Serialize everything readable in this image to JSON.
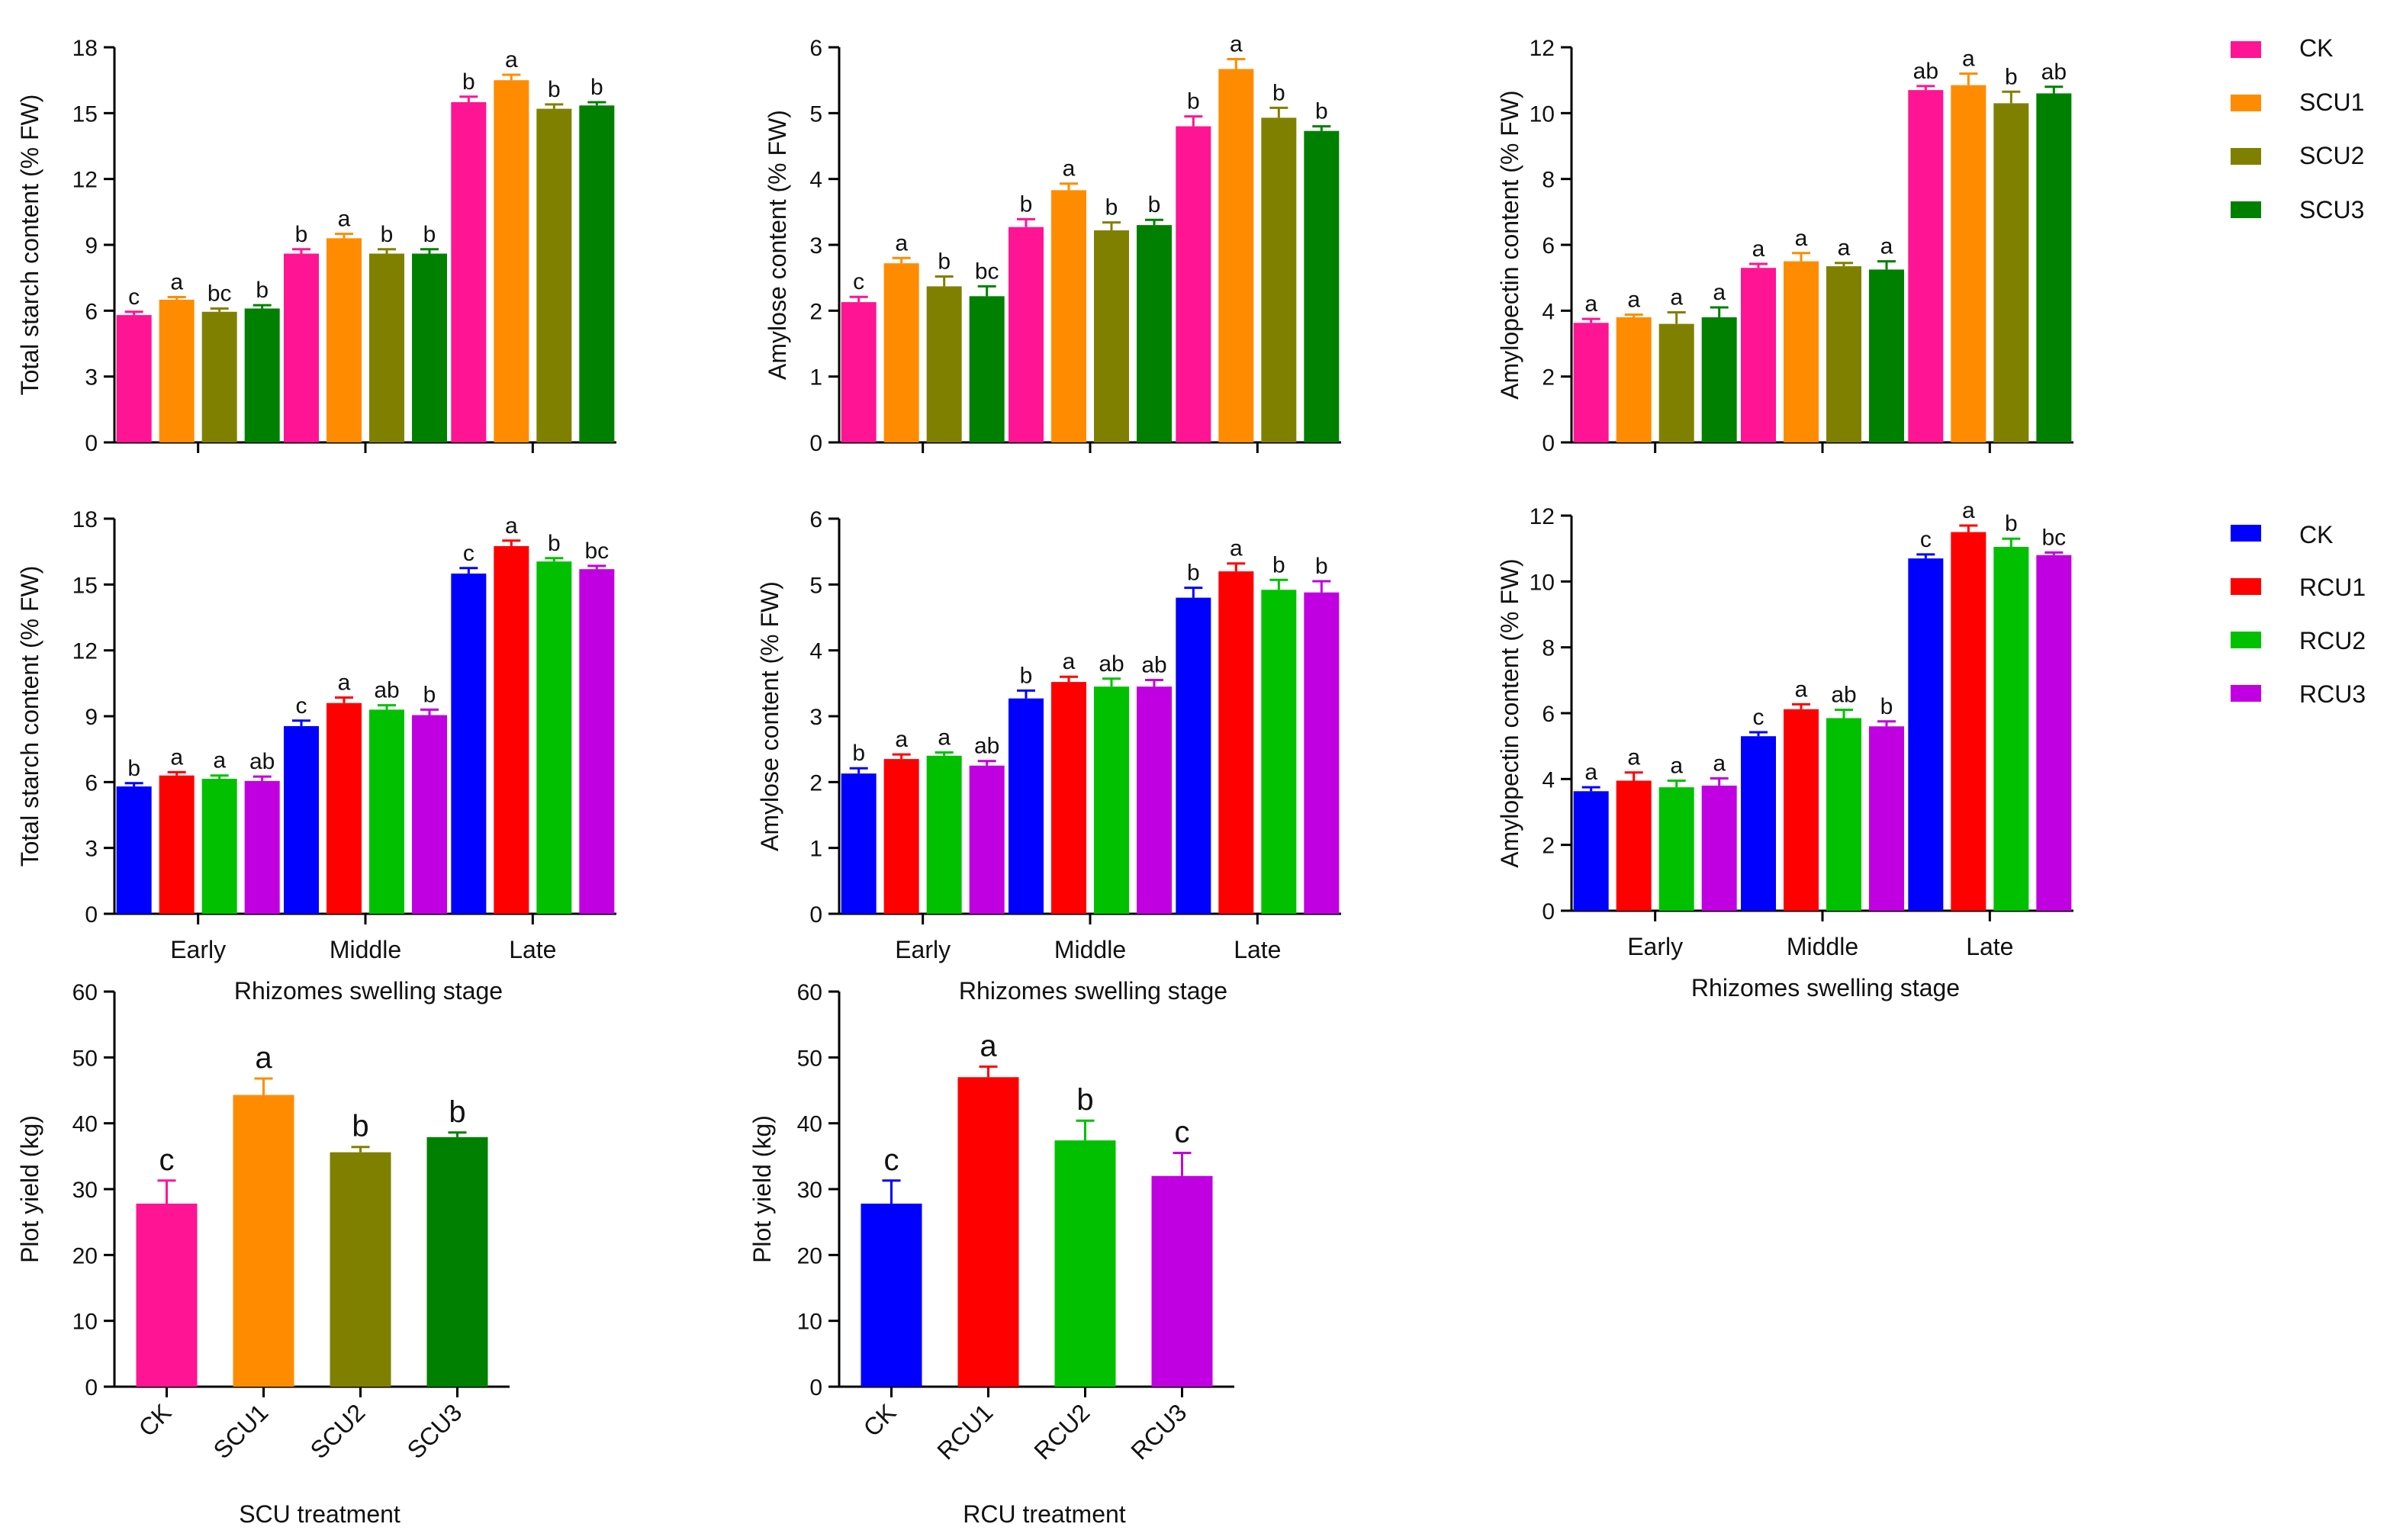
{
  "legends": {
    "scu": [
      {
        "label": "CK",
        "color": "#ff1493"
      },
      {
        "label": "SCU1",
        "color": "#ff8c00"
      },
      {
        "label": "SCU2",
        "color": "#808000"
      },
      {
        "label": "SCU3",
        "color": "#008000"
      }
    ],
    "rcu": [
      {
        "label": "CK",
        "color": "#0000ff"
      },
      {
        "label": "RCU1",
        "color": "#ff0000"
      },
      {
        "label": "RCU2",
        "color": "#00c000"
      },
      {
        "label": "RCU3",
        "color": "#c000e0"
      }
    ]
  },
  "chart_data": [
    {
      "type": "bar",
      "ylabel": "Total starch content (% FW)",
      "xlabel": "",
      "ylim": [
        0,
        18
      ],
      "yticks": [
        0,
        3,
        6,
        9,
        12,
        15,
        18
      ],
      "categories": [
        "Early",
        "Middle",
        "Late"
      ],
      "show_category_labels": false,
      "series": [
        {
          "name": "CK",
          "color": "#ff1493",
          "values": [
            5.8,
            8.6,
            15.5
          ],
          "errors": [
            0.15,
            0.2,
            0.25
          ],
          "letters": [
            "c",
            "b",
            "b"
          ]
        },
        {
          "name": "SCU1",
          "color": "#ff8c00",
          "values": [
            6.5,
            9.3,
            16.5
          ],
          "errors": [
            0.12,
            0.2,
            0.25
          ],
          "letters": [
            "a",
            "a",
            "a"
          ]
        },
        {
          "name": "SCU2",
          "color": "#808000",
          "values": [
            5.95,
            8.6,
            15.2
          ],
          "errors": [
            0.15,
            0.2,
            0.2
          ],
          "letters": [
            "bc",
            "b",
            "b"
          ]
        },
        {
          "name": "SCU3",
          "color": "#008000",
          "values": [
            6.1,
            8.6,
            15.35
          ],
          "errors": [
            0.15,
            0.2,
            0.15
          ],
          "letters": [
            "b",
            "b",
            "b"
          ]
        }
      ]
    },
    {
      "type": "bar",
      "ylabel": "Amylose content (% FW)",
      "xlabel": "",
      "ylim": [
        0,
        6
      ],
      "yticks": [
        0,
        1,
        2,
        3,
        4,
        5,
        6
      ],
      "categories": [
        "Early",
        "Middle",
        "Late"
      ],
      "show_category_labels": false,
      "series": [
        {
          "name": "CK",
          "color": "#ff1493",
          "values": [
            2.13,
            3.27,
            4.8
          ],
          "errors": [
            0.08,
            0.12,
            0.15
          ],
          "letters": [
            "c",
            "b",
            "b"
          ]
        },
        {
          "name": "SCU1",
          "color": "#ff8c00",
          "values": [
            2.72,
            3.83,
            5.67
          ],
          "errors": [
            0.08,
            0.1,
            0.15
          ],
          "letters": [
            "a",
            "a",
            "a"
          ]
        },
        {
          "name": "SCU2",
          "color": "#808000",
          "values": [
            2.37,
            3.22,
            4.93
          ],
          "errors": [
            0.15,
            0.12,
            0.15
          ],
          "letters": [
            "b",
            "b",
            "b"
          ]
        },
        {
          "name": "SCU3",
          "color": "#008000",
          "values": [
            2.22,
            3.3,
            4.73
          ],
          "errors": [
            0.15,
            0.08,
            0.07
          ],
          "letters": [
            "bc",
            "b",
            "b"
          ]
        }
      ]
    },
    {
      "type": "bar",
      "ylabel": "Amylopectin content (% FW)",
      "xlabel": "",
      "ylim": [
        0,
        12
      ],
      "yticks": [
        0,
        2,
        4,
        6,
        8,
        10,
        12
      ],
      "categories": [
        "Early",
        "Middle",
        "Late"
      ],
      "show_category_labels": false,
      "series": [
        {
          "name": "CK",
          "color": "#ff1493",
          "values": [
            3.63,
            5.3,
            10.7
          ],
          "errors": [
            0.12,
            0.12,
            0.12
          ],
          "letters": [
            "a",
            "a",
            "ab"
          ]
        },
        {
          "name": "SCU1",
          "color": "#ff8c00",
          "values": [
            3.8,
            5.5,
            10.85
          ],
          "errors": [
            0.08,
            0.25,
            0.35
          ],
          "letters": [
            "a",
            "a",
            "a"
          ]
        },
        {
          "name": "SCU2",
          "color": "#808000",
          "values": [
            3.6,
            5.35,
            10.3
          ],
          "errors": [
            0.35,
            0.1,
            0.35
          ],
          "letters": [
            "a",
            "a",
            "b"
          ]
        },
        {
          "name": "SCU3",
          "color": "#008000",
          "values": [
            3.8,
            5.25,
            10.6
          ],
          "errors": [
            0.3,
            0.25,
            0.2
          ],
          "letters": [
            "a",
            "a",
            "ab"
          ]
        }
      ]
    },
    {
      "type": "bar",
      "ylabel": "Total starch content (% FW)",
      "xlabel": "Rhizomes swelling stage",
      "ylim": [
        0,
        18
      ],
      "yticks": [
        0,
        3,
        6,
        9,
        12,
        15,
        18
      ],
      "categories": [
        "Early",
        "Middle",
        "Late"
      ],
      "show_category_labels": true,
      "series": [
        {
          "name": "CK",
          "color": "#0000ff",
          "values": [
            5.8,
            8.55,
            15.5
          ],
          "errors": [
            0.15,
            0.25,
            0.25
          ],
          "letters": [
            "b",
            "c",
            "c"
          ]
        },
        {
          "name": "RCU1",
          "color": "#ff0000",
          "values": [
            6.3,
            9.6,
            16.75
          ],
          "errors": [
            0.15,
            0.25,
            0.25
          ],
          "letters": [
            "a",
            "a",
            "a"
          ]
        },
        {
          "name": "RCU2",
          "color": "#00c000",
          "values": [
            6.15,
            9.3,
            16.05
          ],
          "errors": [
            0.15,
            0.2,
            0.15
          ],
          "letters": [
            "a",
            "ab",
            "b"
          ]
        },
        {
          "name": "RCU3",
          "color": "#c000e0",
          "values": [
            6.05,
            9.05,
            15.7
          ],
          "errors": [
            0.2,
            0.25,
            0.15
          ],
          "letters": [
            "ab",
            "b",
            "bc"
          ]
        }
      ]
    },
    {
      "type": "bar",
      "ylabel": "Amylose content (% FW)",
      "xlabel": "Rhizomes swelling stage",
      "ylim": [
        0,
        6
      ],
      "yticks": [
        0,
        1,
        2,
        3,
        4,
        5,
        6
      ],
      "categories": [
        "Early",
        "Middle",
        "Late"
      ],
      "show_category_labels": true,
      "series": [
        {
          "name": "CK",
          "color": "#0000ff",
          "values": [
            2.13,
            3.27,
            4.8
          ],
          "errors": [
            0.08,
            0.12,
            0.15
          ],
          "letters": [
            "b",
            "b",
            "b"
          ]
        },
        {
          "name": "RCU1",
          "color": "#ff0000",
          "values": [
            2.35,
            3.52,
            5.2
          ],
          "errors": [
            0.07,
            0.08,
            0.12
          ],
          "letters": [
            "a",
            "a",
            "a"
          ]
        },
        {
          "name": "RCU2",
          "color": "#00c000",
          "values": [
            2.4,
            3.45,
            4.92
          ],
          "errors": [
            0.05,
            0.12,
            0.15
          ],
          "letters": [
            "a",
            "ab",
            "b"
          ]
        },
        {
          "name": "RCU3",
          "color": "#c000e0",
          "values": [
            2.25,
            3.45,
            4.88
          ],
          "errors": [
            0.07,
            0.1,
            0.17
          ],
          "letters": [
            "ab",
            "ab",
            "b"
          ]
        }
      ]
    },
    {
      "type": "bar",
      "ylabel": "Amylopectin content (% FW)",
      "xlabel": "Rhizomes swelling stage",
      "ylim": [
        0,
        12
      ],
      "yticks": [
        0,
        2,
        4,
        6,
        8,
        10,
        12
      ],
      "categories": [
        "Early",
        "Middle",
        "Late"
      ],
      "show_category_labels": true,
      "series": [
        {
          "name": "CK",
          "color": "#0000ff",
          "values": [
            3.63,
            5.3,
            10.7
          ],
          "errors": [
            0.12,
            0.12,
            0.12
          ],
          "letters": [
            "a",
            "c",
            "c"
          ]
        },
        {
          "name": "RCU1",
          "color": "#ff0000",
          "values": [
            3.95,
            6.12,
            11.5
          ],
          "errors": [
            0.25,
            0.15,
            0.2
          ],
          "letters": [
            "a",
            "a",
            "a"
          ]
        },
        {
          "name": "RCU2",
          "color": "#00c000",
          "values": [
            3.75,
            5.85,
            11.05
          ],
          "errors": [
            0.2,
            0.25,
            0.25
          ],
          "letters": [
            "a",
            "ab",
            "b"
          ]
        },
        {
          "name": "RCU3",
          "color": "#c000e0",
          "values": [
            3.8,
            5.6,
            10.8
          ],
          "errors": [
            0.22,
            0.15,
            0.08
          ],
          "letters": [
            "a",
            "b",
            "bc"
          ]
        }
      ]
    },
    {
      "type": "bar",
      "ylabel": "Plot yield (kg)",
      "xlabel": "SCU treatment",
      "ylim": [
        0,
        60
      ],
      "yticks": [
        0,
        10,
        20,
        30,
        40,
        50,
        60
      ],
      "categories": [
        "CK",
        "SCU1",
        "SCU2",
        "SCU3"
      ],
      "colors": [
        "#ff1493",
        "#ff8c00",
        "#808000",
        "#008000"
      ],
      "values": [
        27.8,
        44.3,
        35.6,
        37.9
      ],
      "errors": [
        3.5,
        2.5,
        0.8,
        0.7
      ],
      "letters": [
        "c",
        "a",
        "b",
        "b"
      ]
    },
    {
      "type": "bar",
      "ylabel": "Plot yield (kg)",
      "xlabel": "RCU treatment",
      "ylim": [
        0,
        60
      ],
      "yticks": [
        0,
        10,
        20,
        30,
        40,
        50,
        60
      ],
      "categories": [
        "CK",
        "RCU1",
        "RCU2",
        "RCU3"
      ],
      "colors": [
        "#0000ff",
        "#ff0000",
        "#00c000",
        "#c000e0"
      ],
      "values": [
        27.8,
        47.0,
        37.4,
        32.0
      ],
      "errors": [
        3.5,
        1.6,
        3.0,
        3.5
      ],
      "letters": [
        "c",
        "a",
        "b",
        "c"
      ]
    }
  ]
}
